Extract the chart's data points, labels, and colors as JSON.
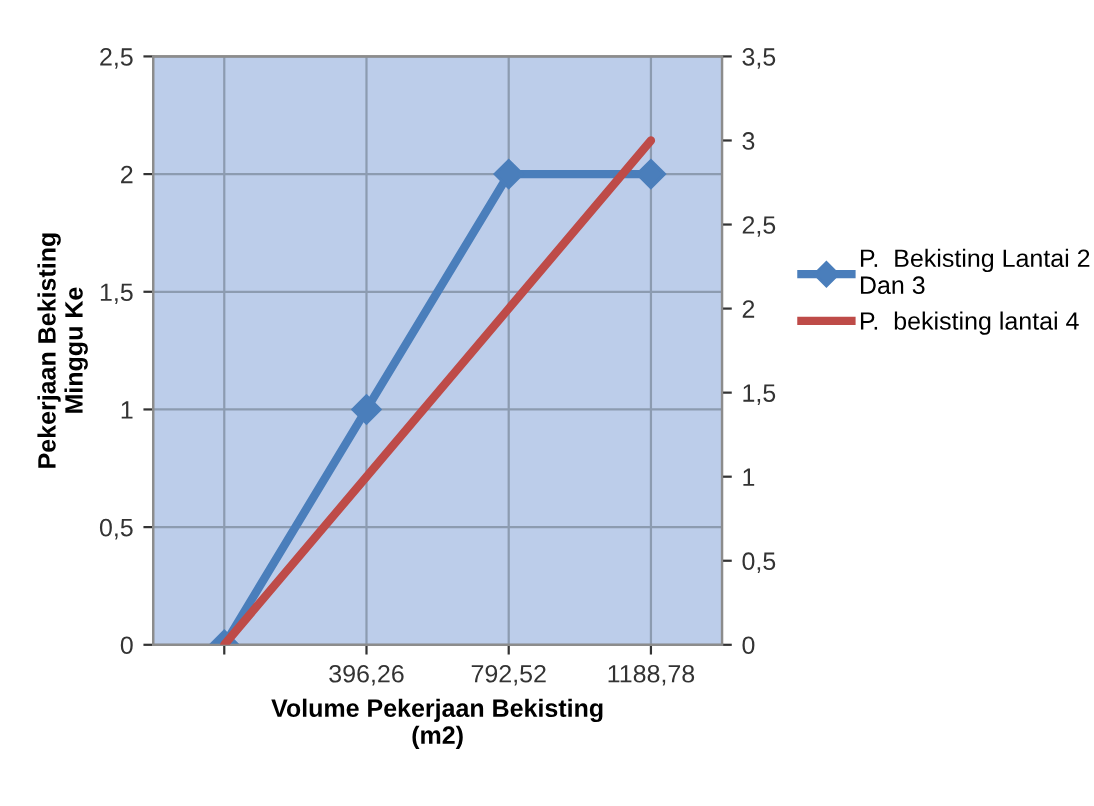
{
  "chart_data": {
    "type": "line",
    "xlabel": "Volume Pekerjaan Bekisting\n(m2)",
    "ylabel": "Pekerjaan Bekisting\nMinggu Ke",
    "categories": [
      null,
      "396,26",
      "792,52",
      "1188,78"
    ],
    "series": [
      {
        "name": "P.  Bekisting Lantai 2\nDan 3",
        "color": "#4a7ebb",
        "values": [
          0,
          1,
          2,
          2
        ],
        "marker": "diamond"
      },
      {
        "name": "P.  bekisting lantai 4",
        "color": "#be4b48",
        "values": [
          0,
          1,
          2,
          3
        ],
        "axis": "y2",
        "marker": "none"
      }
    ],
    "ylim": [
      0,
      2.5
    ],
    "yticks": [
      0,
      {
        "value": 0.5,
        "label": "0,5"
      },
      1,
      {
        "value": 1.5,
        "label": "1,5"
      },
      2,
      {
        "value": 2.5,
        "label": "2,5"
      }
    ],
    "y2lim": [
      0,
      3.5
    ],
    "y2ticks": [
      0,
      {
        "value": 0.5,
        "label": "0,5"
      },
      1,
      {
        "value": 1.5,
        "label": "1,5"
      },
      2,
      {
        "value": 2.5,
        "label": "2,5"
      },
      3,
      {
        "value": 3.5,
        "label": "3,5"
      }
    ],
    "grid": true,
    "legend": "right",
    "line_style": "solid"
  }
}
